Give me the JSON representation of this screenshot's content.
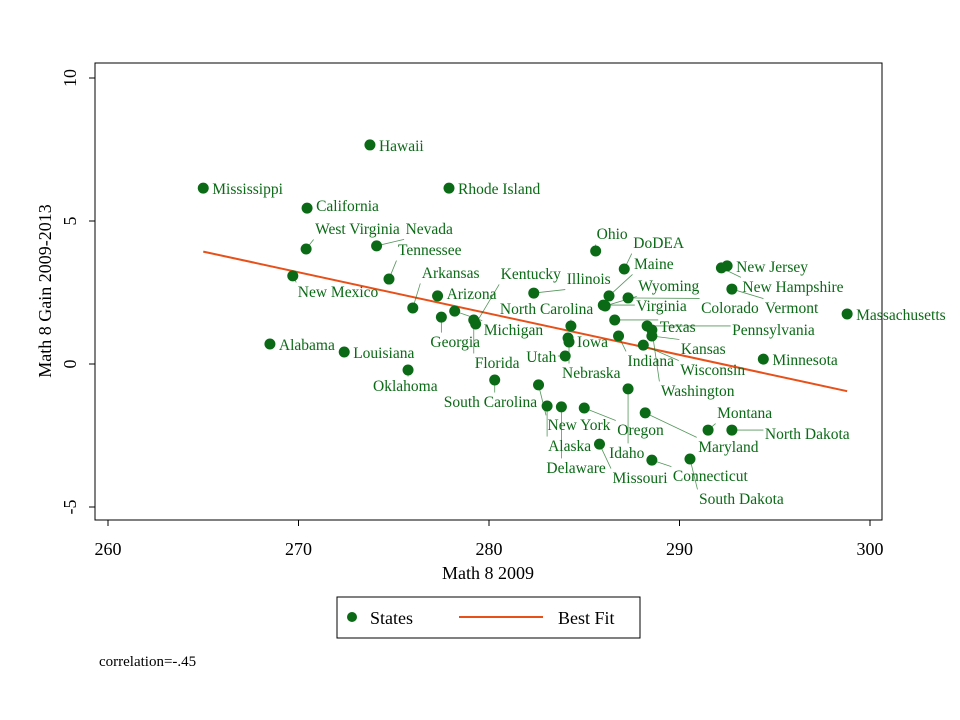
{
  "chart_data": {
    "type": "scatter",
    "xlabel": "Math 8 2009",
    "ylabel": "Math 8 Gain 2009-2013",
    "xlim": [
      260,
      300
    ],
    "ylim": [
      -5,
      10
    ],
    "xticks": [
      260,
      270,
      280,
      290,
      300
    ],
    "yticks": [
      -5,
      0,
      5,
      10
    ],
    "grid": false,
    "legend_position": "bottom",
    "colors": {
      "points": "#0b6a16",
      "fit": "#e8501a"
    },
    "series": [
      {
        "name": "States",
        "points": [
          {
            "label": "Hawaii",
            "x": 273.75,
            "y": 7.66
          },
          {
            "label": "Mississippi",
            "x": 265.0,
            "y": 6.15
          },
          {
            "label": "Rhode Island",
            "x": 277.9,
            "y": 6.15
          },
          {
            "label": "California",
            "x": 270.45,
            "y": 5.45
          },
          {
            "label": "West Virginia",
            "x": 270.4,
            "y": 4.02
          },
          {
            "label": "Nevada",
            "x": 274.1,
            "y": 4.13
          },
          {
            "label": "Ohio",
            "x": 285.6,
            "y": 3.95
          },
          {
            "label": "New Jersey",
            "x": 292.5,
            "y": 3.43
          },
          {
            "label": "New Hampshire",
            "x": 292.2,
            "y": 3.36
          },
          {
            "label": "DoDEA",
            "x": 287.1,
            "y": 3.32
          },
          {
            "label": "New Mexico",
            "x": 269.7,
            "y": 3.08
          },
          {
            "label": "Tennessee",
            "x": 274.75,
            "y": 2.97
          },
          {
            "label": "Vermont",
            "x": 292.75,
            "y": 2.62
          },
          {
            "label": "Arizona",
            "x": 277.3,
            "y": 2.38
          },
          {
            "label": "Illinois",
            "x": 282.35,
            "y": 2.48
          },
          {
            "label": "Maine",
            "x": 286.3,
            "y": 2.38
          },
          {
            "label": "Colorado",
            "x": 287.3,
            "y": 2.31
          },
          {
            "label": "Virginia",
            "x": 286.0,
            "y": 2.06
          },
          {
            "label": "Wyoming",
            "x": 286.1,
            "y": 2.03
          },
          {
            "label": "Arkansas",
            "x": 276.0,
            "y": 1.96
          },
          {
            "label": "Michigan",
            "x": 278.2,
            "y": 1.85
          },
          {
            "label": "Georgia",
            "x": 277.5,
            "y": 1.64
          },
          {
            "label": "Florida",
            "x": 279.2,
            "y": 1.54
          },
          {
            "label": "Kentucky",
            "x": 279.3,
            "y": 1.4
          },
          {
            "label": "Massachusetts",
            "x": 298.8,
            "y": 1.75
          },
          {
            "label": "Texas",
            "x": 286.6,
            "y": 1.54
          },
          {
            "label": "North Carolina",
            "x": 284.3,
            "y": 1.33
          },
          {
            "label": "Pennsylvania",
            "x": 288.3,
            "y": 1.33
          },
          {
            "label": "Washington",
            "x": 288.55,
            "y": 1.19
          },
          {
            "label": "Indiana",
            "x": 286.8,
            "y": 0.98
          },
          {
            "label": "Kansas",
            "x": 288.55,
            "y": 0.98
          },
          {
            "label": "Iowa",
            "x": 284.15,
            "y": 0.91
          },
          {
            "label": "Nebraska",
            "x": 284.2,
            "y": 0.77
          },
          {
            "label": "Wisconsin",
            "x": 288.1,
            "y": 0.66
          },
          {
            "label": "Alabama",
            "x": 268.5,
            "y": 0.7
          },
          {
            "label": "Louisiana",
            "x": 272.4,
            "y": 0.42
          },
          {
            "label": "Minnesota",
            "x": 294.4,
            "y": 0.17
          },
          {
            "label": "Utah",
            "x": 284.0,
            "y": 0.28
          },
          {
            "label": "Oklahoma",
            "x": 275.75,
            "y": -0.21
          },
          {
            "label": "South Carolina",
            "x": 280.3,
            "y": -0.56
          },
          {
            "label": "New York",
            "x": 282.6,
            "y": -0.73
          },
          {
            "label": "Idaho",
            "x": 287.3,
            "y": -0.87
          },
          {
            "label": "Alaska",
            "x": 283.05,
            "y": -1.47
          },
          {
            "label": "Delaware",
            "x": 283.8,
            "y": -1.5
          },
          {
            "label": "Oregon",
            "x": 285.0,
            "y": -1.54
          },
          {
            "label": "Maryland",
            "x": 288.2,
            "y": -1.71
          },
          {
            "label": "Montana",
            "x": 291.5,
            "y": -2.31
          },
          {
            "label": "North Dakota",
            "x": 292.75,
            "y": -2.31
          },
          {
            "label": "Missouri",
            "x": 285.8,
            "y": -2.8
          },
          {
            "label": "Connecticut",
            "x": 288.55,
            "y": -3.36
          },
          {
            "label": "South Dakota",
            "x": 290.55,
            "y": -3.32
          }
        ]
      },
      {
        "name": "Best Fit",
        "type": "line",
        "points": [
          {
            "x": 265.0,
            "y": 3.93
          },
          {
            "x": 298.8,
            "y": -0.95
          }
        ]
      }
    ],
    "legend": [
      "States",
      "Best Fit"
    ],
    "annotation": "correlation=-.45"
  }
}
